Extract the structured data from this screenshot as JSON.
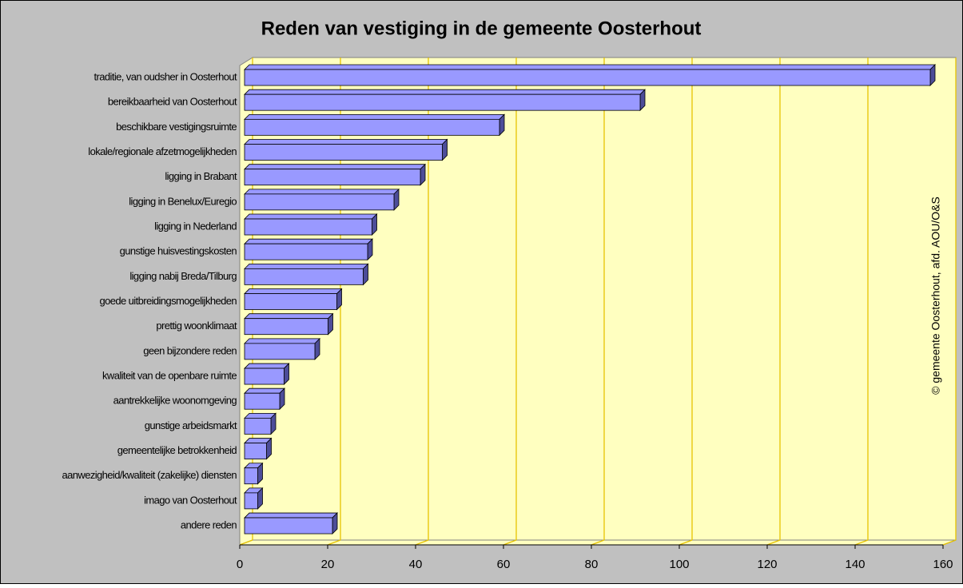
{
  "chart_data": {
    "type": "bar",
    "orientation": "horizontal",
    "title": "Reden van vestiging in de gemeente Oosterhout",
    "annotation": "© gemeente Oosterhout, afd. AOU/O&S",
    "categories": [
      "traditie, van oudsher in Oosterhout",
      "bereikbaarheid van Oosterhout",
      "beschikbare vestigingsruimte",
      "lokale/regionale afzetmogelijkheden",
      "ligging in Brabant",
      "ligging in Benelux/Euregio",
      "ligging in Nederland",
      "gunstige huisvestingskosten",
      "ligging nabij Breda/Tilburg",
      "goede uitbreidingsmogelijkheden",
      "prettig woonklimaat",
      "geen bijzondere reden",
      "kwaliteit van de openbare ruimte",
      "aantrekkelijke woonomgeving",
      "gunstige arbeidsmarkt",
      "gemeentelijke betrokkenheid",
      "aanwezigheid/kwaliteit (zakelijke) diensten",
      "imago van Oosterhout",
      "andere reden"
    ],
    "values": [
      156,
      90,
      58,
      45,
      40,
      34,
      29,
      28,
      27,
      21,
      19,
      16,
      9,
      8,
      6,
      5,
      3,
      3,
      20
    ],
    "color": "#9999ff",
    "xlim": [
      0,
      160
    ],
    "xticks": [
      0,
      20,
      40,
      60,
      80,
      100,
      120,
      140,
      160
    ],
    "grid": true
  }
}
